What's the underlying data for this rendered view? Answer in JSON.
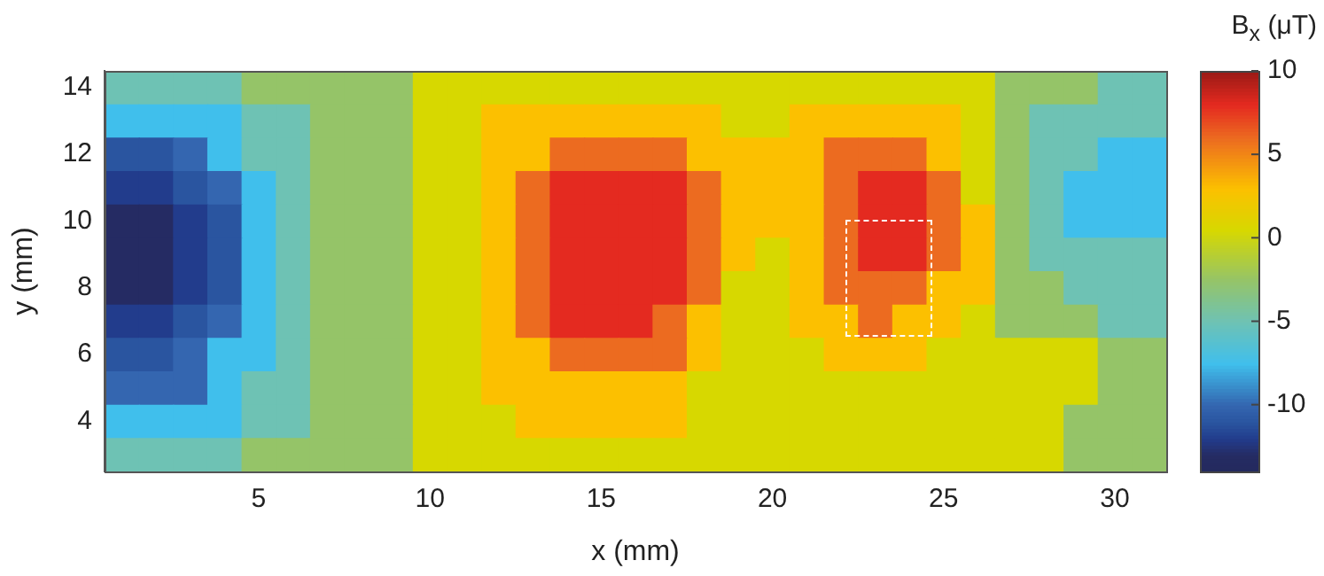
{
  "chart_data": {
    "type": "heatmap",
    "xlabel": "x (mm)",
    "ylabel": "y (mm)",
    "clabel": "B$_{x}$ (μT)",
    "x": [
      1,
      2,
      3,
      4,
      5,
      6,
      7,
      8,
      9,
      10,
      11,
      12,
      13,
      14,
      15,
      16,
      17,
      18,
      19,
      20,
      21,
      22,
      23,
      24,
      25,
      26,
      27,
      28,
      29,
      30,
      31
    ],
    "y": [
      14,
      13,
      12,
      11,
      10,
      9,
      8,
      7,
      6,
      5,
      4,
      3
    ],
    "cells": [
      [
        -5,
        -5,
        -5,
        -5,
        -2.5,
        -2.5,
        -2.5,
        -2.5,
        -2.5,
        0.5,
        0.5,
        0.5,
        0.5,
        0.5,
        0.5,
        0.5,
        0.5,
        0.5,
        0.5,
        0.5,
        0.5,
        0.5,
        0.5,
        0.5,
        0.5,
        0.5,
        -2.5,
        -2.5,
        -2.5,
        -5,
        -5
      ],
      [
        -7.5,
        -7.5,
        -7.5,
        -7.5,
        -5,
        -5,
        -2.5,
        -2.5,
        -2.5,
        0.5,
        0.5,
        3,
        3,
        3,
        3,
        3,
        3,
        3,
        0.5,
        0.5,
        3,
        3,
        3,
        3,
        3,
        0.5,
        -2.5,
        -5,
        -5,
        -5,
        -5
      ],
      [
        -11,
        -11,
        -10,
        -7.5,
        -5,
        -5,
        -2.5,
        -2.5,
        -2.5,
        0.5,
        0.5,
        3,
        3,
        6,
        6,
        6,
        6,
        3,
        3,
        3,
        3,
        6,
        6,
        6,
        3,
        0.5,
        -2.5,
        -5,
        -5,
        -7.5,
        -7.5
      ],
      [
        -12,
        -12,
        -11,
        -10,
        -7.5,
        -5,
        -2.5,
        -2.5,
        -2.5,
        0.5,
        0.5,
        3,
        6,
        8,
        8,
        8,
        8,
        6,
        3,
        3,
        3,
        6,
        8,
        8,
        6,
        0.5,
        -2.5,
        -5,
        -7.5,
        -7.5,
        -7.5
      ],
      [
        -13,
        -13,
        -12,
        -11,
        -7.5,
        -5,
        -2.5,
        -2.5,
        -2.5,
        0.5,
        0.5,
        3,
        6,
        8,
        8,
        8,
        8,
        6,
        3,
        3,
        3,
        6,
        8,
        8,
        6,
        3,
        -2.5,
        -5,
        -7.5,
        -7.5,
        -7.5
      ],
      [
        -13,
        -13,
        -12,
        -11,
        -7.5,
        -5,
        -2.5,
        -2.5,
        -2.5,
        0.5,
        0.5,
        3,
        6,
        8,
        8,
        8,
        8,
        6,
        3,
        0.5,
        3,
        6,
        8,
        8,
        6,
        3,
        -2.5,
        -5,
        -5,
        -5,
        -5
      ],
      [
        -13,
        -13,
        -12,
        -11,
        -7.5,
        -5,
        -2.5,
        -2.5,
        -2.5,
        0.5,
        0.5,
        3,
        6,
        8,
        8,
        8,
        8,
        6,
        0.5,
        0.5,
        3,
        6,
        6,
        6,
        3,
        3,
        -2.5,
        -2.5,
        -5,
        -5,
        -5
      ],
      [
        -12,
        -12,
        -11,
        -10,
        -7.5,
        -5,
        -2.5,
        -2.5,
        -2.5,
        0.5,
        0.5,
        3,
        6,
        8,
        8,
        8,
        6,
        3,
        0.5,
        0.5,
        3,
        3,
        6,
        3,
        3,
        0.5,
        -2.5,
        -2.5,
        -2.5,
        -5,
        -5
      ],
      [
        -11,
        -11,
        -10,
        -7.5,
        -7.5,
        -5,
        -2.5,
        -2.5,
        -2.5,
        0.5,
        0.5,
        3,
        3,
        6,
        6,
        6,
        6,
        3,
        0.5,
        0.5,
        0.5,
        3,
        3,
        3,
        0.5,
        0.5,
        0.5,
        0.5,
        0.5,
        -2.5,
        -2.5
      ],
      [
        -10,
        -10,
        -10,
        -7.5,
        -5,
        -5,
        -2.5,
        -2.5,
        -2.5,
        0.5,
        0.5,
        3,
        3,
        3,
        3,
        3,
        3,
        0.5,
        0.5,
        0.5,
        0.5,
        0.5,
        0.5,
        0.5,
        0.5,
        0.5,
        0.5,
        0.5,
        0.5,
        -2.5,
        -2.5
      ],
      [
        -7.5,
        -7.5,
        -7.5,
        -7.5,
        -5,
        -5,
        -2.5,
        -2.5,
        -2.5,
        0.5,
        0.5,
        0.5,
        3,
        3,
        3,
        3,
        3,
        0.5,
        0.5,
        0.5,
        0.5,
        0.5,
        0.5,
        0.5,
        0.5,
        0.5,
        0.5,
        0.5,
        -2.5,
        -2.5,
        -2.5
      ],
      [
        -5,
        -5,
        -5,
        -5,
        -2.5,
        -2.5,
        -2.5,
        -2.5,
        -2.5,
        0.5,
        0.5,
        0.5,
        0.5,
        0.5,
        0.5,
        0.5,
        0.5,
        0.5,
        0.5,
        0.5,
        0.5,
        0.5,
        0.5,
        0.5,
        0.5,
        0.5,
        0.5,
        0.5,
        -2.5,
        -2.5,
        -2.5
      ]
    ],
    "xlim": [
      0.5,
      31.5
    ],
    "xticks": [
      5,
      10,
      15,
      20,
      25,
      30
    ],
    "ylim": [
      2.5,
      14.5
    ],
    "yticks": [
      4,
      6,
      8,
      10,
      12,
      14
    ],
    "clim": [
      -14,
      10
    ],
    "cticks": [
      10,
      5,
      0,
      -5,
      -10
    ],
    "grid": false
  }
}
